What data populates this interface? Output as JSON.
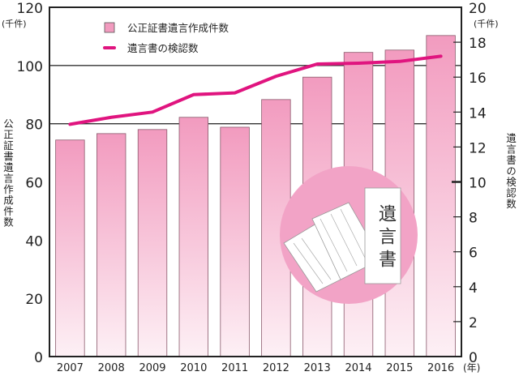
{
  "chart_data": {
    "type": "bar+line",
    "categories": [
      "2007",
      "2008",
      "2009",
      "2010",
      "2011",
      "2012",
      "2013",
      "2014",
      "2015",
      "2016"
    ],
    "x_unit": "(年)",
    "series": [
      {
        "name": "公正証書遺言作成件数",
        "type": "bar",
        "axis": "left",
        "values": [
          74.4,
          76.6,
          78.0,
          82.2,
          78.8,
          88.3,
          96.0,
          104.5,
          105.3,
          110.3
        ]
      },
      {
        "name": "遺言書の検認数",
        "type": "line",
        "axis": "right",
        "values": [
          13.3,
          13.7,
          14.0,
          15.0,
          15.1,
          16.05,
          16.75,
          16.8,
          16.9,
          17.2
        ]
      }
    ],
    "left_axis": {
      "label": "公正証書遺言作成件数",
      "unit": "(千件)",
      "range": [
        0,
        120
      ],
      "ticks": [
        0,
        20,
        40,
        60,
        80,
        100,
        120
      ]
    },
    "right_axis": {
      "label": "遺言書の検認数",
      "unit": "(千件)",
      "range": [
        0,
        20
      ],
      "ticks": [
        0,
        2,
        4,
        6,
        8,
        10,
        12,
        14,
        16,
        18,
        20
      ]
    },
    "gridlines": [
      80,
      100
    ],
    "legend_placement": "top-left",
    "illustration_label": "遺言書",
    "colors": {
      "bar": "#f29bbf",
      "bar_light": "#fde9f1",
      "line": "#e0147f",
      "illustration": "#f2a3c6"
    }
  }
}
